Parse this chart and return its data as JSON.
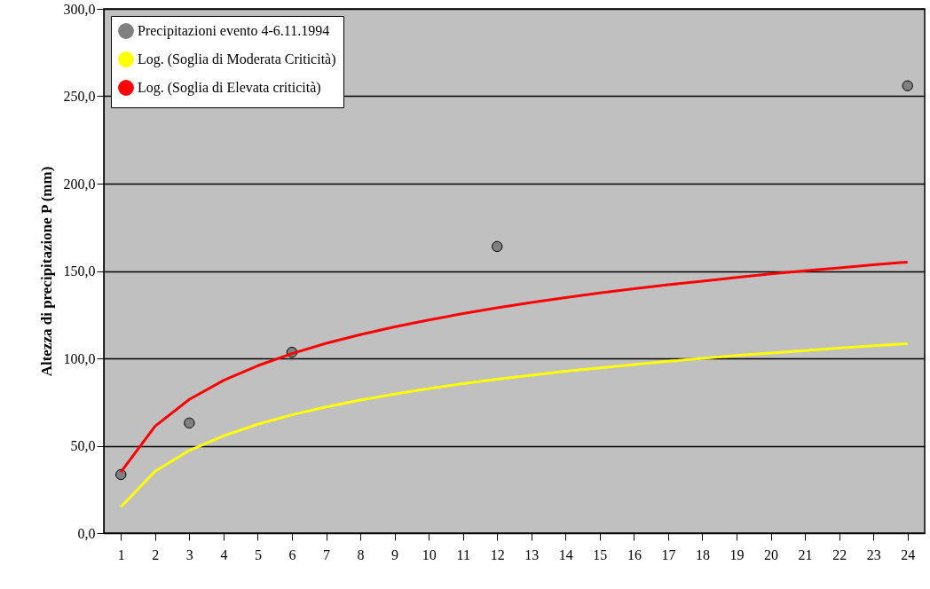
{
  "chart_data": {
    "type": "line",
    "ylabel": "Altezza di precipitazione P (mm)",
    "xlim": [
      0.5,
      24.5
    ],
    "xticks": [
      1,
      2,
      3,
      4,
      5,
      6,
      7,
      8,
      9,
      10,
      11,
      12,
      13,
      14,
      15,
      16,
      17,
      18,
      19,
      20,
      21,
      22,
      23,
      24
    ],
    "ylim": [
      0,
      300
    ],
    "yticks": [
      {
        "value": 0,
        "label": "0,0"
      },
      {
        "value": 50,
        "label": "50,0"
      },
      {
        "value": 100,
        "label": "100,0"
      },
      {
        "value": 150,
        "label": "150,0"
      },
      {
        "value": 200,
        "label": "200,0"
      },
      {
        "value": 250,
        "label": "250,0"
      },
      {
        "value": 300,
        "label": "300,0"
      }
    ],
    "grid": "y",
    "legend": "top left",
    "series": [
      {
        "name": "Precipitazioni evento 4-6.11.1994",
        "type": "scatter",
        "marker": "circle",
        "color": "#808080",
        "x": [
          1,
          3,
          6,
          12,
          24
        ],
        "values": [
          33.5,
          63,
          103.5,
          164,
          256
        ]
      },
      {
        "name": "Log. (Soglia di Moderata Criticità)",
        "color": "#ffff00",
        "x": [
          1,
          2,
          3,
          4,
          5,
          6,
          7,
          8,
          9,
          10,
          11,
          12,
          13,
          14,
          15,
          16,
          17,
          18,
          19,
          20,
          21,
          22,
          23,
          24
        ],
        "values": [
          15,
          35.4,
          47.3,
          55.7,
          62.3,
          67.7,
          72.2,
          76.1,
          79.6,
          82.7,
          85.5,
          88.1,
          90.4,
          92.6,
          94.6,
          96.5,
          98.3,
          100,
          101.6,
          103.1,
          104.5,
          105.9,
          107.2,
          108.4
        ]
      },
      {
        "name": "Log. (Soglia di Elevata criticità)",
        "color": "#ff0000",
        "x": [
          1,
          2,
          3,
          4,
          5,
          6,
          7,
          8,
          9,
          10,
          11,
          12,
          13,
          14,
          15,
          16,
          17,
          18,
          19,
          20,
          21,
          22,
          23,
          24
        ],
        "values": [
          35,
          61.2,
          76.5,
          87.4,
          95.8,
          102.7,
          108.6,
          113.6,
          118,
          122,
          125.6,
          128.9,
          132,
          134.8,
          137.4,
          139.8,
          142.1,
          144.2,
          146.3,
          148.3,
          150.1,
          151.8,
          153.5,
          155.1
        ]
      }
    ]
  }
}
